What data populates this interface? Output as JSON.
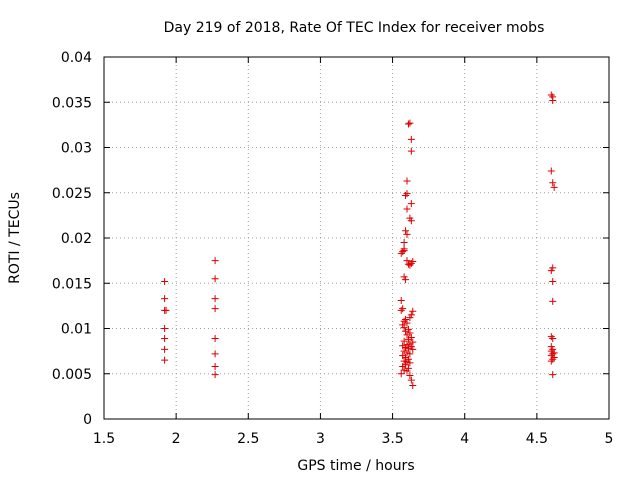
{
  "chart_data": {
    "type": "scatter",
    "title": "Day 219 of 2018, Rate Of TEC Index for receiver mobs",
    "xlabel": "GPS time / hours",
    "ylabel": "ROTI / TECUs",
    "xlim": [
      1.5,
      5
    ],
    "ylim": [
      0,
      0.04
    ],
    "xticks": [
      1.5,
      2,
      2.5,
      3,
      3.5,
      4,
      4.5,
      5
    ],
    "xtick_labels": [
      "1.5",
      "2",
      "2.5",
      "3",
      "3.5",
      "4",
      "4.5",
      "5"
    ],
    "yticks": [
      0,
      0.005,
      0.01,
      0.015,
      0.02,
      0.025,
      0.03,
      0.035,
      0.04
    ],
    "ytick_labels": [
      "0",
      "0.005",
      "0.01",
      "0.015",
      "0.02",
      "0.025",
      "0.03",
      "0.035",
      "0.04"
    ],
    "grid": true,
    "marker": "+",
    "series_color": "#dd0000",
    "points": [
      [
        1.92,
        0.0152
      ],
      [
        1.92,
        0.0133
      ],
      [
        1.92,
        0.012
      ],
      [
        1.93,
        0.012
      ],
      [
        1.92,
        0.01
      ],
      [
        1.92,
        0.0089
      ],
      [
        1.92,
        0.0077
      ],
      [
        1.92,
        0.0065
      ],
      [
        2.27,
        0.0175
      ],
      [
        2.27,
        0.0155
      ],
      [
        2.27,
        0.0133
      ],
      [
        2.27,
        0.0122
      ],
      [
        2.27,
        0.0089
      ],
      [
        2.27,
        0.0072
      ],
      [
        2.27,
        0.0058
      ],
      [
        2.27,
        0.0049
      ],
      [
        3.62,
        0.0327
      ],
      [
        3.61,
        0.0326
      ],
      [
        3.63,
        0.0309
      ],
      [
        3.63,
        0.0296
      ],
      [
        3.6,
        0.0263
      ],
      [
        3.6,
        0.0249
      ],
      [
        3.59,
        0.0247
      ],
      [
        3.63,
        0.0238
      ],
      [
        3.6,
        0.0232
      ],
      [
        3.62,
        0.0222
      ],
      [
        3.63,
        0.0219
      ],
      [
        3.59,
        0.0208
      ],
      [
        3.6,
        0.0204
      ],
      [
        3.58,
        0.0195
      ],
      [
        3.58,
        0.0188
      ],
      [
        3.57,
        0.0185
      ],
      [
        3.56,
        0.0183
      ],
      [
        3.58,
        0.0186
      ],
      [
        3.6,
        0.0175
      ],
      [
        3.64,
        0.0174
      ],
      [
        3.63,
        0.0172
      ],
      [
        3.61,
        0.0171
      ],
      [
        3.62,
        0.017
      ],
      [
        3.58,
        0.0157
      ],
      [
        3.59,
        0.0154
      ],
      [
        3.56,
        0.0131
      ],
      [
        3.57,
        0.0122
      ],
      [
        3.56,
        0.012
      ],
      [
        3.64,
        0.0119
      ],
      [
        3.63,
        0.0115
      ],
      [
        3.62,
        0.0112
      ],
      [
        3.59,
        0.011
      ],
      [
        3.58,
        0.0108
      ],
      [
        3.6,
        0.0106
      ],
      [
        3.57,
        0.0104
      ],
      [
        3.58,
        0.0101
      ],
      [
        3.61,
        0.0099
      ],
      [
        3.59,
        0.0097
      ],
      [
        3.62,
        0.0095
      ],
      [
        3.6,
        0.0093
      ],
      [
        3.63,
        0.009
      ],
      [
        3.61,
        0.0088
      ],
      [
        3.58,
        0.0086
      ],
      [
        3.64,
        0.0085
      ],
      [
        3.62,
        0.0083
      ],
      [
        3.6,
        0.0082
      ],
      [
        3.57,
        0.0081
      ],
      [
        3.63,
        0.008
      ],
      [
        3.59,
        0.0079
      ],
      [
        3.61,
        0.0078
      ],
      [
        3.64,
        0.0077
      ],
      [
        3.58,
        0.0075
      ],
      [
        3.6,
        0.0073
      ],
      [
        3.62,
        0.0072
      ],
      [
        3.57,
        0.007
      ],
      [
        3.59,
        0.0068
      ],
      [
        3.61,
        0.0066
      ],
      [
        3.58,
        0.0064
      ],
      [
        3.6,
        0.0063
      ],
      [
        3.62,
        0.0062
      ],
      [
        3.59,
        0.006
      ],
      [
        3.57,
        0.0058
      ],
      [
        3.61,
        0.0056
      ],
      [
        3.58,
        0.0054
      ],
      [
        3.6,
        0.0053
      ],
      [
        3.56,
        0.005
      ],
      [
        3.62,
        0.0048
      ],
      [
        3.63,
        0.0043
      ],
      [
        3.64,
        0.0037
      ],
      [
        4.6,
        0.0358
      ],
      [
        4.61,
        0.0356
      ],
      [
        4.61,
        0.0352
      ],
      [
        4.6,
        0.0274
      ],
      [
        4.61,
        0.0261
      ],
      [
        4.62,
        0.0256
      ],
      [
        4.61,
        0.0167
      ],
      [
        4.6,
        0.0164
      ],
      [
        4.61,
        0.0152
      ],
      [
        4.61,
        0.013
      ],
      [
        4.6,
        0.0091
      ],
      [
        4.61,
        0.0089
      ],
      [
        4.6,
        0.008
      ],
      [
        4.61,
        0.0077
      ],
      [
        4.6,
        0.0075
      ],
      [
        4.62,
        0.0073
      ],
      [
        4.61,
        0.0072
      ],
      [
        4.6,
        0.007
      ],
      [
        4.62,
        0.0068
      ],
      [
        4.61,
        0.0066
      ],
      [
        4.6,
        0.0064
      ],
      [
        4.61,
        0.0049
      ]
    ]
  }
}
